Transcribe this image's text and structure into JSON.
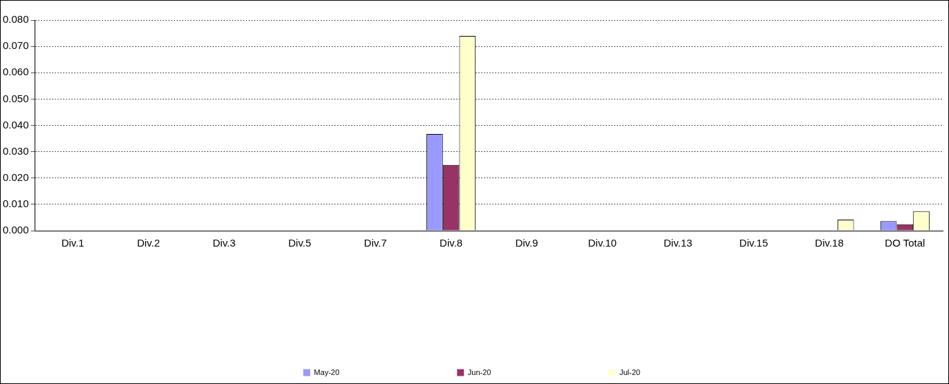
{
  "chart_data": {
    "type": "bar",
    "categories": [
      "Div.1",
      "Div.2",
      "Div.3",
      "Div.5",
      "Div.7",
      "Div.8",
      "Div.9",
      "Div.10",
      "Div.13",
      "Div.15",
      "Div.18",
      "DO Total"
    ],
    "series": [
      {
        "name": "May-20",
        "color": "#9999ff",
        "values": [
          0,
          0,
          0,
          0,
          0,
          0.0367,
          0,
          0,
          0,
          0,
          0,
          0.0036
        ]
      },
      {
        "name": "Jun-20",
        "color": "#993366",
        "values": [
          0,
          0,
          0,
          0,
          0,
          0.025,
          0,
          0,
          0,
          0,
          0,
          0.0024
        ]
      },
      {
        "name": "Jul-20",
        "color": "#ffffcc",
        "values": [
          0,
          0,
          0,
          0,
          0,
          0.074,
          0,
          0,
          0,
          0,
          0.0042,
          0.0074
        ]
      }
    ],
    "ylim": [
      0,
      0.08
    ],
    "yticks": [
      {
        "value": 0,
        "label": "0.000"
      },
      {
        "value": 0.01,
        "label": "0.010"
      },
      {
        "value": 0.02,
        "label": "0.020"
      },
      {
        "value": 0.03,
        "label": "0.030"
      },
      {
        "value": 0.04,
        "label": "0.040"
      },
      {
        "value": 0.05,
        "label": "0.050"
      },
      {
        "value": 0.06,
        "label": "0.060"
      },
      {
        "value": 0.07,
        "label": "0.070"
      },
      {
        "value": 0.08,
        "label": "0.080"
      }
    ],
    "grid": "y",
    "legend": "bottom"
  }
}
